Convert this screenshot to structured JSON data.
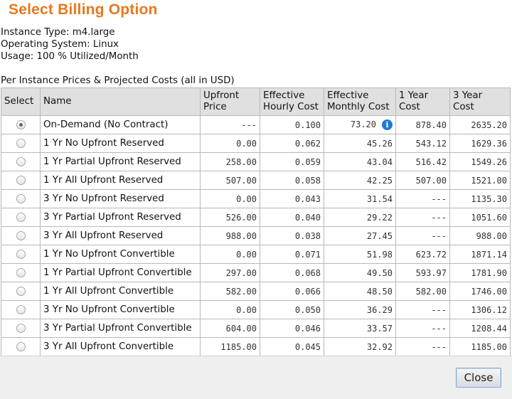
{
  "dialog": {
    "title": "Select Billing Option",
    "info": [
      "Instance Type: m4.large",
      "Operating System: Linux",
      "Usage: 100 % Utilized/Month"
    ],
    "caption": "Per Instance Prices & Projected Costs (all in USD)",
    "close_label": "Close"
  },
  "table": {
    "headers": {
      "select": "Select",
      "name": "Name",
      "upfront": [
        "Upfront",
        "Price"
      ],
      "hourly": [
        "Effective",
        "Hourly Cost"
      ],
      "monthly": [
        "Effective",
        "Monthly Cost"
      ],
      "year1": [
        "1 Year",
        "Cost"
      ],
      "year3": [
        "3 Year",
        "Cost"
      ]
    },
    "rows": [
      {
        "name": "On-Demand (No Contract)",
        "upfront": "---",
        "hourly": "0.100",
        "monthly": "73.20",
        "y1": "878.40",
        "y3": "2635.20",
        "selected": true,
        "info": true
      },
      {
        "name": "1 Yr No Upfront Reserved",
        "upfront": "0.00",
        "hourly": "0.062",
        "monthly": "45.26",
        "y1": "543.12",
        "y3": "1629.36"
      },
      {
        "name": "1 Yr Partial Upfront Reserved",
        "upfront": "258.00",
        "hourly": "0.059",
        "monthly": "43.04",
        "y1": "516.42",
        "y3": "1549.26"
      },
      {
        "name": "1 Yr All Upfront Reserved",
        "upfront": "507.00",
        "hourly": "0.058",
        "monthly": "42.25",
        "y1": "507.00",
        "y3": "1521.00"
      },
      {
        "name": "3 Yr No Upfront Reserved",
        "upfront": "0.00",
        "hourly": "0.043",
        "monthly": "31.54",
        "y1": "---",
        "y3": "1135.30"
      },
      {
        "name": "3 Yr Partial Upfront Reserved",
        "upfront": "526.00",
        "hourly": "0.040",
        "monthly": "29.22",
        "y1": "---",
        "y3": "1051.60"
      },
      {
        "name": "3 Yr All Upfront Reserved",
        "upfront": "988.00",
        "hourly": "0.038",
        "monthly": "27.45",
        "y1": "---",
        "y3": "988.00"
      },
      {
        "name": "1 Yr No Upfront Convertible",
        "upfront": "0.00",
        "hourly": "0.071",
        "monthly": "51.98",
        "y1": "623.72",
        "y3": "1871.14"
      },
      {
        "name": "1 Yr Partial Upfront Convertible",
        "upfront": "297.00",
        "hourly": "0.068",
        "monthly": "49.50",
        "y1": "593.97",
        "y3": "1781.90"
      },
      {
        "name": "1 Yr All Upfront Convertible",
        "upfront": "582.00",
        "hourly": "0.066",
        "monthly": "48.50",
        "y1": "582.00",
        "y3": "1746.00"
      },
      {
        "name": "3 Yr No Upfront Convertible",
        "upfront": "0.00",
        "hourly": "0.050",
        "monthly": "36.29",
        "y1": "---",
        "y3": "1306.12"
      },
      {
        "name": "3 Yr Partial Upfront Convertible",
        "upfront": "604.00",
        "hourly": "0.046",
        "monthly": "33.57",
        "y1": "---",
        "y3": "1208.44"
      },
      {
        "name": "3 Yr All Upfront Convertible",
        "upfront": "1185.00",
        "hourly": "0.045",
        "monthly": "32.92",
        "y1": "---",
        "y3": "1185.00"
      }
    ]
  },
  "icons": {
    "info": "info-icon",
    "info_glyph": "i",
    "info_color": "#1f7ad6",
    "title_color": "#e8791d"
  }
}
